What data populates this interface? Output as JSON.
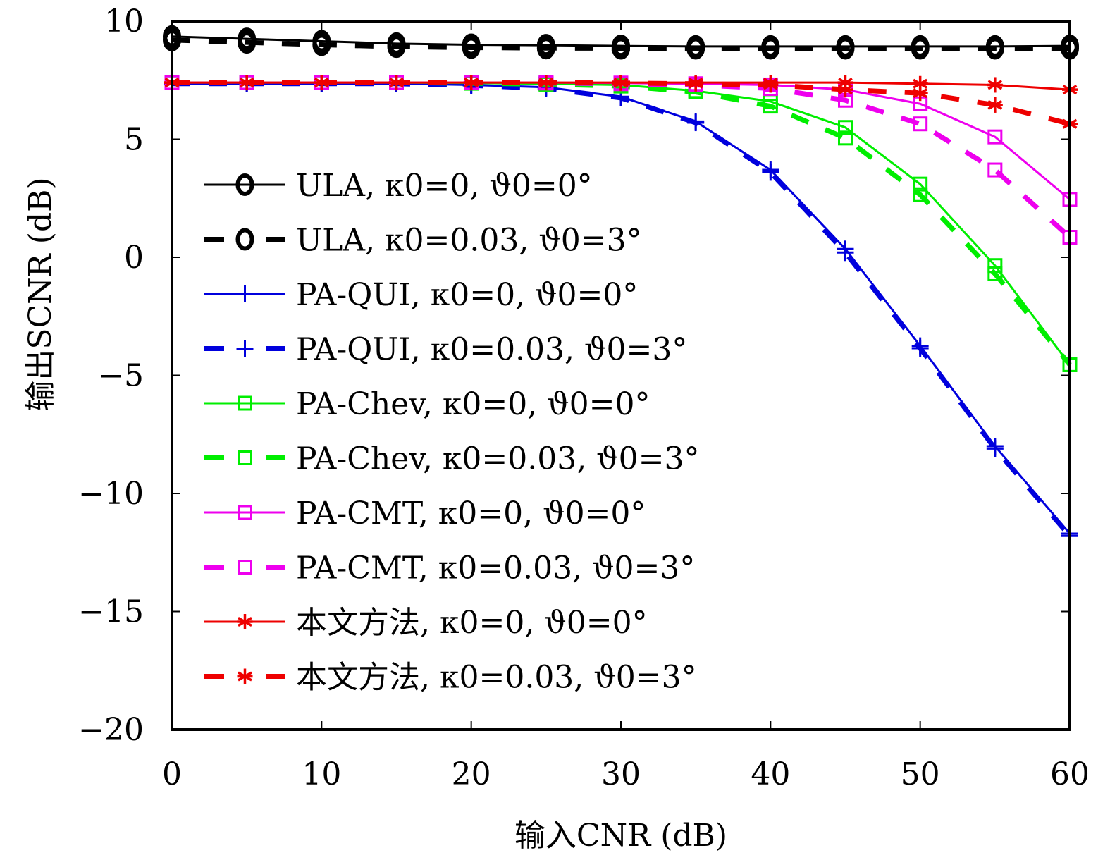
{
  "chart_data": {
    "type": "line",
    "title": "",
    "xlabel": "输入CNR (dB)",
    "ylabel": "输出SCNR (dB)",
    "xlim": [
      0,
      60
    ],
    "ylim": [
      -20,
      10
    ],
    "xticks": [
      0,
      10,
      20,
      30,
      40,
      50,
      60
    ],
    "xtick_labels": [
      "0",
      "10",
      "20",
      "30",
      "40",
      "50",
      "60"
    ],
    "yticks": [
      10,
      5,
      0,
      -5,
      -10,
      -15,
      -20
    ],
    "ytick_labels": [
      "10",
      "5",
      "0",
      "−5",
      "−10",
      "−15",
      "−20"
    ],
    "grid": false,
    "legend_position": "center-left",
    "x": [
      0,
      5,
      10,
      15,
      20,
      25,
      30,
      35,
      40,
      45,
      50,
      55,
      60
    ],
    "series": [
      {
        "name": "ULA, κ0=0, ϑ0=0°",
        "method": "ULA",
        "params": "κ0=0, ϑ0=0°",
        "color": "#000000",
        "dash": "solid",
        "marker": "circle",
        "values": [
          9.35,
          9.25,
          9.15,
          9.05,
          9.0,
          8.98,
          8.95,
          8.93,
          8.93,
          8.93,
          8.93,
          8.93,
          8.95
        ]
      },
      {
        "name": "ULA, κ0=0.03, ϑ0=3°",
        "method": "ULA",
        "params": "κ0=0.03, ϑ0=3°",
        "color": "#000000",
        "dash": "dashed",
        "marker": "circle",
        "values": [
          9.2,
          9.1,
          9.0,
          8.92,
          8.88,
          8.86,
          8.85,
          8.85,
          8.85,
          8.85,
          8.85,
          8.85,
          8.85
        ]
      },
      {
        "name": "PA-QUI, κ0=0, ϑ0=0°",
        "method": "PA-QUI",
        "params": "κ0=0, ϑ0=0°",
        "color": "#0000dd",
        "dash": "solid",
        "marker": "plus",
        "values": [
          7.35,
          7.35,
          7.35,
          7.35,
          7.3,
          7.2,
          6.8,
          5.75,
          3.7,
          0.35,
          -3.75,
          -8.0,
          -11.7
        ]
      },
      {
        "name": "PA-QUI, κ0=0.03, ϑ0=3°",
        "method": "PA-QUI",
        "params": "κ0=0.03, ϑ0=3°",
        "color": "#0000dd",
        "dash": "dashed",
        "marker": "plus",
        "values": [
          7.35,
          7.35,
          7.35,
          7.35,
          7.28,
          7.15,
          6.75,
          5.7,
          3.6,
          0.2,
          -3.85,
          -8.1,
          -11.8
        ]
      },
      {
        "name": "PA-Chev, κ0=0, ϑ0=0°",
        "method": "PA-Chev",
        "params": "κ0=0, ϑ0=0°",
        "color": "#00ee00",
        "dash": "solid",
        "marker": "square",
        "values": [
          7.4,
          7.4,
          7.4,
          7.4,
          7.38,
          7.35,
          7.3,
          7.05,
          6.6,
          5.5,
          3.1,
          -0.35,
          -4.55
        ]
      },
      {
        "name": "PA-Chev, κ0=0.03, ϑ0=3°",
        "method": "PA-Chev",
        "params": "κ0=0.03, ϑ0=3°",
        "color": "#00ee00",
        "dash": "dashed",
        "marker": "square",
        "values": [
          7.4,
          7.4,
          7.4,
          7.4,
          7.37,
          7.33,
          7.25,
          7.0,
          6.4,
          5.05,
          2.65,
          -0.7,
          -4.55
        ]
      },
      {
        "name": "PA-CMT, κ0=0, ϑ0=0°",
        "method": "PA-CMT",
        "params": "κ0=0, ϑ0=0°",
        "color": "#ee00ee",
        "dash": "solid",
        "marker": "square",
        "values": [
          7.4,
          7.4,
          7.4,
          7.4,
          7.4,
          7.4,
          7.38,
          7.35,
          7.3,
          7.1,
          6.5,
          5.1,
          2.45
        ]
      },
      {
        "name": "PA-CMT, κ0=0.03, ϑ0=3°",
        "method": "PA-CMT",
        "params": "κ0=0.03, ϑ0=3°",
        "color": "#ee00ee",
        "dash": "dashed",
        "marker": "square",
        "values": [
          7.4,
          7.4,
          7.4,
          7.4,
          7.4,
          7.38,
          7.35,
          7.3,
          7.15,
          6.65,
          5.65,
          3.7,
          0.85
        ]
      },
      {
        "name": "本文方法, κ0=0, ϑ0=0°",
        "method": "本文方法",
        "params": "κ0=0, ϑ0=0°",
        "color": "#ee0000",
        "dash": "solid",
        "marker": "asterisk",
        "values": [
          7.4,
          7.4,
          7.4,
          7.4,
          7.4,
          7.4,
          7.4,
          7.4,
          7.4,
          7.4,
          7.35,
          7.3,
          7.1
        ]
      },
      {
        "name": "本文方法, κ0=0.03, ϑ0=3°",
        "method": "本文方法",
        "params": "κ0=0.03, ϑ0=3°",
        "color": "#ee0000",
        "dash": "dashed",
        "marker": "asterisk",
        "values": [
          7.4,
          7.4,
          7.4,
          7.4,
          7.4,
          7.4,
          7.38,
          7.35,
          7.3,
          7.1,
          6.95,
          6.45,
          5.65
        ]
      }
    ]
  }
}
